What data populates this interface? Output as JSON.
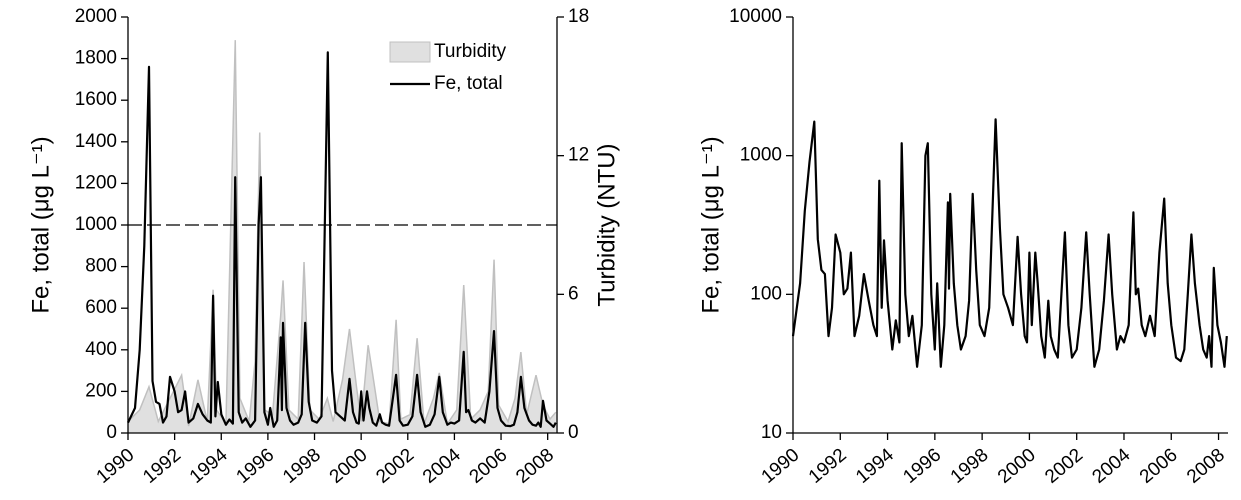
{
  "chart_data": [
    {
      "type": "line",
      "xlim": [
        1990,
        2008.4
      ],
      "xticks": [
        1990,
        1992,
        1994,
        1996,
        1998,
        2000,
        2002,
        2004,
        2006,
        2008
      ],
      "ylim": [
        0,
        2000
      ],
      "yticks": [
        0,
        200,
        400,
        600,
        800,
        1000,
        1200,
        1400,
        1600,
        1800,
        2000
      ],
      "y2lim": [
        0,
        18
      ],
      "y2ticks": [
        0,
        6,
        12,
        18
      ],
      "ylabel": "Fe, total (μg L⁻¹)",
      "y2label": "Turbidity (NTU)",
      "legend": "top-right",
      "hline": 1000,
      "series": [
        {
          "name": "Turbidity",
          "type": "area",
          "axis": "y2",
          "color": "#c0c0c0",
          "fill": "#e0e0e0",
          "x": [
            1990.0,
            1990.5,
            1990.9,
            1991.3,
            1991.8,
            1992.3,
            1992.6,
            1993.0,
            1993.4,
            1993.65,
            1993.8,
            1994.2,
            1994.6,
            1994.8,
            1995.2,
            1995.45,
            1995.65,
            1995.85,
            1996.2,
            1996.55,
            1996.65,
            1996.9,
            1997.3,
            1997.55,
            1997.8,
            1998.2,
            1998.55,
            1998.8,
            1999.2,
            1999.5,
            1999.8,
            2000.0,
            2000.3,
            2000.5,
            2000.8,
            2001.2,
            2001.5,
            2001.7,
            2002.1,
            2002.4,
            2002.7,
            2003.1,
            2003.35,
            2003.7,
            2004.1,
            2004.4,
            2004.7,
            2005.1,
            2005.45,
            2005.7,
            2005.9,
            2006.3,
            2006.6,
            2006.85,
            2007.1,
            2007.5,
            2007.8,
            2008.1,
            2008.35
          ],
          "values": [
            0.5,
            1.0,
            2.0,
            0.5,
            1.5,
            2.5,
            0.3,
            2.3,
            0.5,
            6.2,
            1.0,
            0.4,
            17.0,
            1.5,
            0.5,
            3.1,
            13.0,
            1.0,
            0.8,
            5.1,
            6.6,
            1.0,
            0.6,
            7.4,
            1.0,
            0.6,
            1.5,
            0.5,
            2.3,
            4.5,
            2.0,
            0.5,
            3.8,
            2.5,
            0.5,
            0.4,
            4.9,
            0.6,
            0.8,
            4.1,
            0.4,
            1.5,
            2.6,
            0.4,
            1.0,
            6.4,
            0.6,
            1.0,
            1.8,
            7.5,
            1.2,
            0.5,
            1.5,
            3.5,
            0.8,
            2.5,
            1.2,
            0.6,
            0.9
          ]
        },
        {
          "name": "Fe, total",
          "type": "line",
          "axis": "y",
          "color": "#000000",
          "x": [
            1990.0,
            1990.3,
            1990.5,
            1990.7,
            1990.9,
            1991.05,
            1991.2,
            1991.35,
            1991.5,
            1991.65,
            1991.8,
            1992.0,
            1992.15,
            1992.3,
            1992.45,
            1992.6,
            1992.8,
            1993.0,
            1993.2,
            1993.4,
            1993.55,
            1993.65,
            1993.75,
            1993.85,
            1994.0,
            1994.2,
            1994.35,
            1994.5,
            1994.6,
            1994.75,
            1994.9,
            1995.05,
            1995.25,
            1995.45,
            1995.6,
            1995.7,
            1995.85,
            1996.0,
            1996.1,
            1996.25,
            1996.4,
            1996.55,
            1996.6,
            1996.65,
            1996.8,
            1996.95,
            1997.1,
            1997.3,
            1997.45,
            1997.6,
            1997.75,
            1997.9,
            1998.1,
            1998.3,
            1998.57,
            1998.75,
            1998.9,
            1999.1,
            1999.3,
            1999.5,
            1999.65,
            1999.8,
            1999.9,
            2000.0,
            2000.1,
            2000.25,
            2000.35,
            2000.5,
            2000.65,
            2000.8,
            2000.9,
            2001.05,
            2001.2,
            2001.5,
            2001.65,
            2001.8,
            2002.0,
            2002.2,
            2002.4,
            2002.55,
            2002.75,
            2002.95,
            2003.15,
            2003.35,
            2003.5,
            2003.7,
            2003.85,
            2004.0,
            2004.2,
            2004.4,
            2004.5,
            2004.6,
            2004.75,
            2004.9,
            2005.1,
            2005.3,
            2005.5,
            2005.7,
            2005.85,
            2006.0,
            2006.2,
            2006.4,
            2006.55,
            2006.7,
            2006.85,
            2007.0,
            2007.2,
            2007.35,
            2007.5,
            2007.6,
            2007.7,
            2007.8,
            2007.95,
            2008.1,
            2008.25,
            2008.35
          ],
          "values": [
            50,
            120,
            400,
            900,
            1760,
            250,
            150,
            140,
            50,
            80,
            270,
            200,
            100,
            110,
            200,
            50,
            70,
            140,
            90,
            60,
            50,
            660,
            80,
            245,
            90,
            40,
            65,
            45,
            1230,
            100,
            50,
            70,
            30,
            60,
            1000,
            1230,
            100,
            40,
            120,
            30,
            60,
            460,
            110,
            530,
            120,
            60,
            40,
            50,
            90,
            530,
            150,
            60,
            50,
            80,
            1830,
            300,
            100,
            80,
            60,
            260,
            100,
            50,
            45,
            200,
            60,
            200,
            120,
            50,
            35,
            90,
            50,
            40,
            35,
            280,
            60,
            35,
            40,
            80,
            280,
            100,
            30,
            40,
            90,
            270,
            100,
            40,
            50,
            45,
            60,
            390,
            100,
            110,
            60,
            50,
            70,
            50,
            200,
            490,
            120,
            60,
            35,
            33,
            40,
            100,
            270,
            120,
            60,
            40,
            35,
            50,
            30,
            155,
            60,
            45,
            30,
            50
          ]
        }
      ]
    },
    {
      "type": "line",
      "yscale": "log",
      "xlim": [
        1990,
        2008.4
      ],
      "xticks": [
        1990,
        1992,
        1994,
        1996,
        1998,
        2000,
        2002,
        2004,
        2006,
        2008
      ],
      "ylim": [
        10,
        10000
      ],
      "yticks": [
        10,
        100,
        1000,
        10000
      ],
      "ylabel": "Fe, total (μg L⁻¹)",
      "series": [
        {
          "type": "line",
          "axis": "y",
          "color": "#000000",
          "x": [
            1990.0,
            1990.3,
            1990.5,
            1990.7,
            1990.9,
            1991.05,
            1991.2,
            1991.35,
            1991.5,
            1991.65,
            1991.8,
            1992.0,
            1992.15,
            1992.3,
            1992.45,
            1992.6,
            1992.8,
            1993.0,
            1993.2,
            1993.4,
            1993.55,
            1993.65,
            1993.75,
            1993.85,
            1994.0,
            1994.2,
            1994.35,
            1994.5,
            1994.6,
            1994.75,
            1994.9,
            1995.05,
            1995.25,
            1995.45,
            1995.6,
            1995.7,
            1995.85,
            1996.0,
            1996.1,
            1996.25,
            1996.4,
            1996.55,
            1996.6,
            1996.65,
            1996.8,
            1996.95,
            1997.1,
            1997.3,
            1997.45,
            1997.6,
            1997.75,
            1997.9,
            1998.1,
            1998.3,
            1998.57,
            1998.75,
            1998.9,
            1999.1,
            1999.3,
            1999.5,
            1999.65,
            1999.8,
            1999.9,
            2000.0,
            2000.1,
            2000.25,
            2000.35,
            2000.5,
            2000.65,
            2000.8,
            2000.9,
            2001.05,
            2001.2,
            2001.5,
            2001.65,
            2001.8,
            2002.0,
            2002.2,
            2002.4,
            2002.55,
            2002.75,
            2002.95,
            2003.15,
            2003.35,
            2003.5,
            2003.7,
            2003.85,
            2004.0,
            2004.2,
            2004.4,
            2004.5,
            2004.6,
            2004.75,
            2004.9,
            2005.1,
            2005.3,
            2005.5,
            2005.7,
            2005.85,
            2006.0,
            2006.2,
            2006.4,
            2006.55,
            2006.7,
            2006.85,
            2007.0,
            2007.2,
            2007.35,
            2007.5,
            2007.6,
            2007.7,
            2007.8,
            2007.95,
            2008.1,
            2008.25,
            2008.35
          ],
          "values": [
            50,
            120,
            400,
            900,
            1760,
            250,
            150,
            140,
            50,
            80,
            270,
            200,
            100,
            110,
            200,
            50,
            70,
            140,
            90,
            60,
            50,
            660,
            80,
            245,
            90,
            40,
            65,
            45,
            1230,
            100,
            50,
            70,
            30,
            60,
            1000,
            1230,
            100,
            40,
            120,
            30,
            60,
            460,
            110,
            530,
            120,
            60,
            40,
            50,
            90,
            530,
            150,
            60,
            50,
            80,
            1830,
            300,
            100,
            80,
            60,
            260,
            100,
            50,
            45,
            200,
            60,
            200,
            120,
            50,
            35,
            90,
            50,
            40,
            35,
            280,
            60,
            35,
            40,
            80,
            280,
            100,
            30,
            40,
            90,
            270,
            100,
            40,
            50,
            45,
            60,
            390,
            100,
            110,
            60,
            50,
            70,
            50,
            200,
            490,
            120,
            60,
            35,
            33,
            40,
            100,
            270,
            120,
            60,
            40,
            35,
            50,
            30,
            155,
            60,
            45,
            30,
            50
          ]
        }
      ]
    }
  ]
}
